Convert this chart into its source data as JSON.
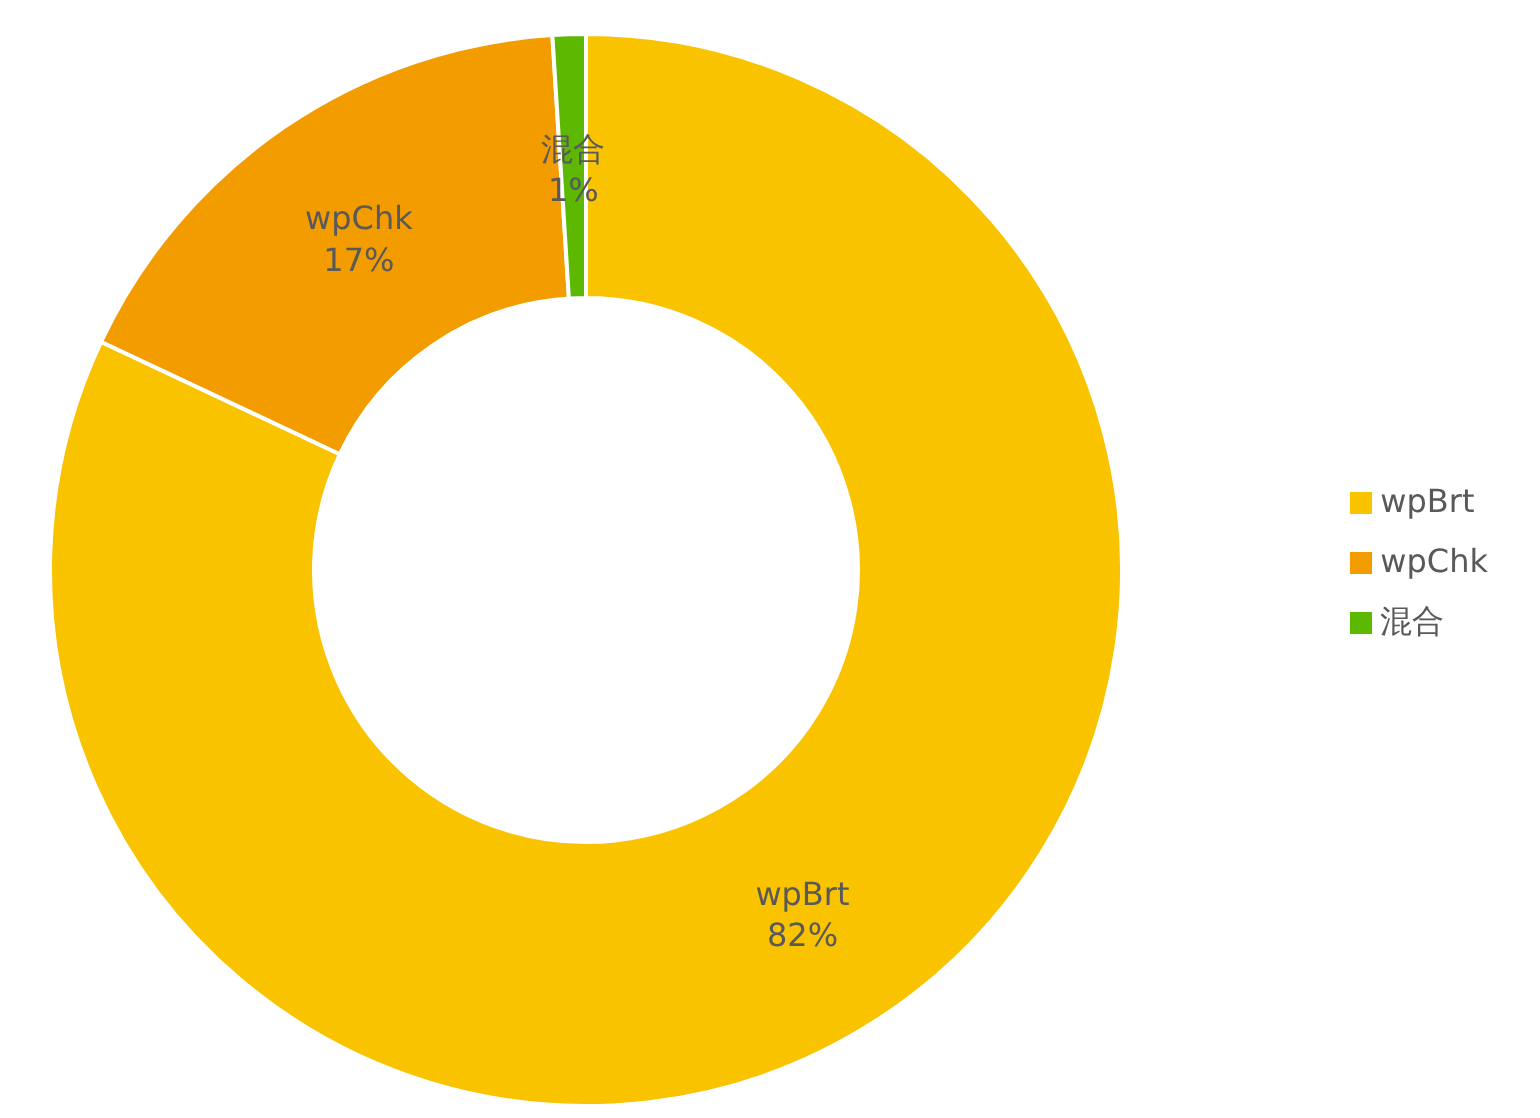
{
  "chart_data": {
    "type": "donut",
    "categories": [
      "wpBrt",
      "wpChk",
      "混合"
    ],
    "values": [
      82,
      17,
      1
    ],
    "value_labels": [
      "82%",
      "17%",
      "1%"
    ],
    "colors": [
      "#f9c300",
      "#f39c00",
      "#5cb800"
    ],
    "legend": "right"
  }
}
